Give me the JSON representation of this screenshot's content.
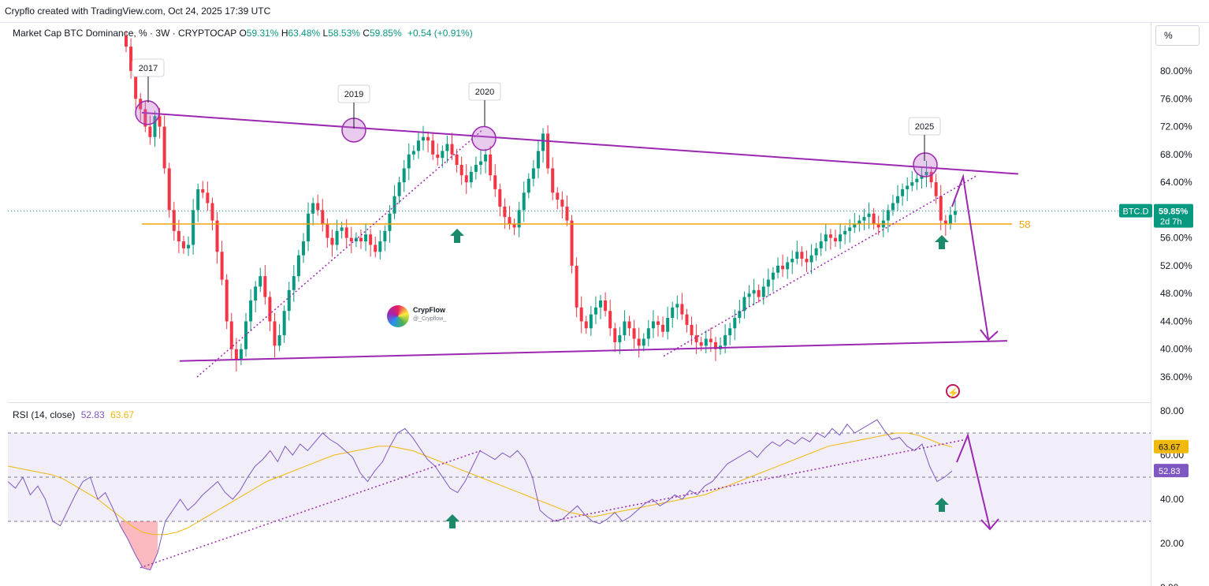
{
  "header": {
    "credit": "Crypflo created with TradingView.com, Oct 24, 2025 17:39 UTC"
  },
  "legend": {
    "title": "Market Cap BTC Dominance, % · 3W · CRYPTOCAP",
    "o_label": "O",
    "o_value": "59.31%",
    "h_label": "H",
    "h_value": "63.48%",
    "l_label": "L",
    "l_value": "58.53%",
    "c_label": "C",
    "c_value": "59.85%",
    "change": "+0.54 (+0.91%)"
  },
  "price_axis": {
    "unit": "%",
    "labels": [
      "80.00%",
      "76.00%",
      "72.00%",
      "68.00%",
      "64.00%",
      "56.00%",
      "52.00%",
      "48.00%",
      "44.00%",
      "40.00%",
      "36.00%"
    ],
    "symbol_tag": "BTC.D",
    "price_tag": "59.85%",
    "countdown_tag": "2d 7h",
    "up_color": "#089981",
    "down_color": "#f23645"
  },
  "annotations": {
    "years": [
      "2017",
      "2019",
      "2020",
      "2025"
    ],
    "level_label": "58",
    "level_color": "#f0a30a",
    "channel_color": "#9c27b0"
  },
  "watermark": {
    "name": "CrypFlow",
    "handle": "@_Crypflow_"
  },
  "rsi": {
    "title": "RSI (14, close)",
    "rsi_value": "52.83",
    "ma_value": "63.67",
    "axis_labels": [
      "80.00",
      "60.00",
      "40.00",
      "20.00",
      "0.00"
    ],
    "rsi_color": "#7e57c2",
    "ma_color": "#f0b90b"
  },
  "chart_data": [
    {
      "type": "candlestick",
      "title": "Market Cap BTC Dominance, % · 3W · CRYPTOCAP",
      "ylim": [
        34,
        84
      ],
      "last": {
        "open": 59.31,
        "high": 63.48,
        "low": 58.53,
        "close": 59.85,
        "change": 0.54,
        "change_pct": 0.91
      },
      "horizontal_levels": [
        58
      ],
      "channel": {
        "upper": [
          {
            "x": 2017.3,
            "y": 74.0
          },
          {
            "x": 2026.0,
            "y": 65.2
          }
        ],
        "lower": [
          {
            "x": 2018.0,
            "y": 38.5
          },
          {
            "x": 2026.0,
            "y": 41.5
          }
        ]
      },
      "projection": [
        {
          "x": 2025.8,
          "y": 59.85
        },
        {
          "x": 2025.9,
          "y": 64.5
        },
        {
          "x": 2026.1,
          "y": 41.5
        }
      ],
      "series": [
        {
          "name": "BTC.D",
          "values": [
            83.5,
            80.0,
            76.0,
            74.5,
            72.0,
            70.5,
            73.5,
            72.0,
            66.0,
            60.0,
            57.0,
            55.5,
            54.5,
            55.0,
            60.0,
            63.0,
            62.5,
            61.0,
            58.5,
            54.0,
            50.0,
            44.0,
            40.0,
            38.5,
            40.0,
            44.0,
            47.0,
            49.0,
            50.5,
            47.5,
            44.0,
            40.5,
            42.0,
            45.5,
            48.5,
            50.5,
            53.5,
            55.5,
            59.5,
            61.0,
            60.0,
            58.0,
            56.0,
            55.0,
            57.0,
            57.5,
            56.0,
            55.5,
            56.0,
            55.5,
            56.5,
            55.0,
            54.0,
            55.5,
            57.0,
            59.5,
            62.0,
            64.0,
            66.0,
            68.0,
            68.5,
            70.0,
            70.5,
            70.0,
            68.0,
            67.5,
            68.5,
            69.5,
            68.0,
            66.5,
            65.0,
            64.0,
            65.5,
            66.5,
            67.0,
            68.0,
            65.0,
            63.0,
            60.5,
            59.0,
            58.0,
            57.5,
            60.0,
            62.5,
            64.5,
            66.0,
            68.5,
            71.0,
            66.0,
            62.5,
            61.5,
            60.5,
            58.5,
            52.0,
            46.0,
            44.0,
            43.0,
            45.0,
            46.0,
            47.0,
            45.5,
            43.0,
            41.0,
            42.0,
            44.0,
            43.0,
            41.5,
            40.5,
            41.5,
            43.0,
            44.0,
            43.5,
            42.5,
            44.5,
            46.0,
            46.5,
            45.0,
            43.5,
            42.0,
            41.0,
            40.5,
            41.5,
            41.0,
            40.0,
            40.5,
            42.0,
            43.0,
            44.5,
            45.5,
            47.5,
            48.0,
            48.5,
            47.5,
            49.0,
            50.0,
            51.0,
            52.0,
            51.5,
            52.5,
            53.0,
            54.0,
            53.0,
            52.5,
            53.5,
            54.5,
            55.5,
            56.5,
            56.0,
            55.5,
            56.5,
            57.0,
            57.5,
            58.0,
            58.5,
            59.0,
            59.5,
            58.0,
            57.5,
            58.5,
            60.0,
            61.0,
            62.0,
            63.0,
            63.5,
            64.0,
            64.5,
            65.0,
            65.5,
            64.0,
            62.0,
            58.5,
            58.0,
            59.31,
            59.85
          ]
        }
      ]
    },
    {
      "type": "line",
      "title": "RSI (14, close)",
      "ylim": [
        0,
        80
      ],
      "bands": [
        30,
        50,
        70
      ],
      "series": [
        {
          "name": "RSI",
          "values": [
            48,
            45,
            50,
            42,
            46,
            40,
            30,
            28,
            35,
            42,
            48,
            50,
            40,
            43,
            36,
            28,
            22,
            15,
            9,
            8,
            16,
            30,
            35,
            40,
            35,
            38,
            42,
            45,
            48,
            43,
            40,
            44,
            50,
            55,
            58,
            62,
            57,
            64,
            60,
            65,
            62,
            66,
            70,
            67,
            65,
            62,
            59,
            52,
            48,
            53,
            57,
            64,
            70,
            72,
            68,
            63,
            58,
            55,
            50,
            45,
            43,
            48,
            55,
            62,
            60,
            58,
            61,
            59,
            62,
            58,
            50,
            35,
            32,
            30,
            31,
            34,
            37,
            33,
            30,
            29,
            31,
            34,
            30,
            32,
            35,
            38,
            40,
            37,
            39,
            42,
            40,
            44,
            42,
            46,
            48,
            52,
            56,
            58,
            60,
            62,
            59,
            63,
            66,
            64,
            67,
            65,
            68,
            66,
            70,
            68,
            72,
            69,
            74,
            70,
            72,
            74,
            76,
            71,
            67,
            68,
            64,
            62,
            65,
            55,
            48,
            50,
            52.83
          ]
        },
        {
          "name": "RSI-based MA",
          "values": [
            55,
            54,
            53,
            52,
            51,
            49,
            46,
            43,
            40,
            36,
            32,
            28,
            25,
            24,
            24,
            25,
            27,
            30,
            33,
            36,
            39,
            42,
            45,
            48,
            50,
            52,
            54,
            56,
            58,
            60,
            61,
            62,
            63,
            64,
            64,
            63,
            62,
            60,
            58,
            56,
            54,
            52,
            50,
            48,
            46,
            44,
            42,
            40,
            38,
            36,
            34,
            33,
            32,
            33,
            34,
            35,
            36,
            37,
            38,
            39,
            40,
            41,
            42,
            44,
            46,
            48,
            50,
            52,
            54,
            56,
            58,
            60,
            62,
            64,
            65,
            66,
            67,
            68,
            69,
            70,
            70,
            69,
            67,
            65,
            63.67
          ]
        }
      ]
    }
  ]
}
